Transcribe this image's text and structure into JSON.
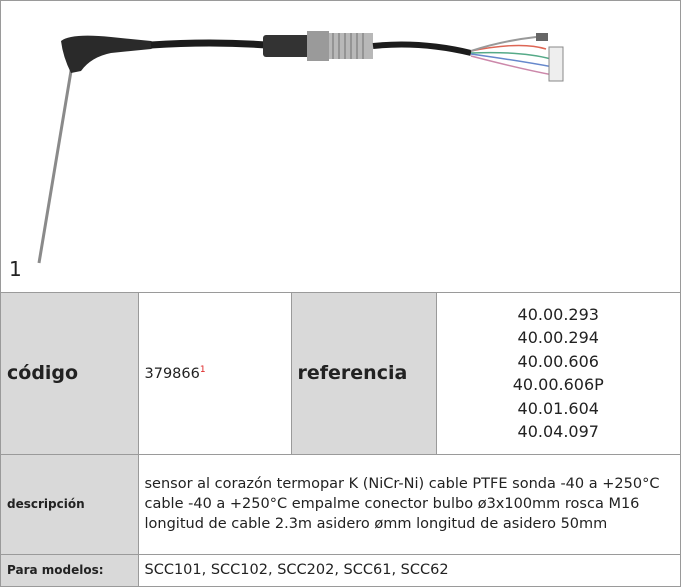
{
  "image": {
    "label": "1"
  },
  "table": {
    "code_label": "código",
    "code": "379866",
    "code_note": "1",
    "reference_label": "referencia",
    "references": [
      "40.00.293",
      "40.00.294",
      "40.00.606",
      "40.00.606P",
      "40.01.604",
      "40.04.097"
    ],
    "description_label": "descripción",
    "description": "sensor al corazón  termopar K (NiCr-Ni) cable PTFE sonda -40 a +250°C cable -40 a +250°C empalme conector bulbo ø3x100mm rosca M16 longitud de cable  2.3m asidero ømm longitud de asidero 50mm",
    "models_label": "Para modelos:",
    "models": "SCC101, SCC102, SCC202, SCC61, SCC62"
  }
}
